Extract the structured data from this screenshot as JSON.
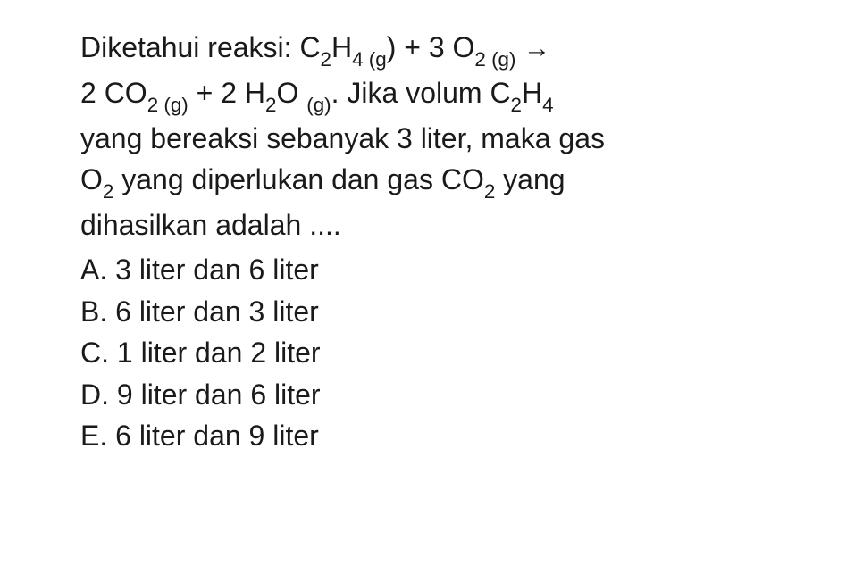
{
  "question": {
    "line1_prefix": "Diketahui reaksi: C",
    "line1_s1": "2",
    "line1_h": "H",
    "line1_s2": "4 (g",
    "line1_paren": ") + 3 O",
    "line1_s3": "2 (g)",
    "line1_arrow": " →",
    "line2_prefix": "2 CO",
    "line2_s1": "2 (g)",
    "line2_mid": " + 2 H",
    "line2_s2": "2",
    "line2_o": "O ",
    "line2_s3": "(g)",
    "line2_end": ".  Jika volum C",
    "line2_s4": "2",
    "line2_h2": "H",
    "line2_s5": "4",
    "line3": "yang bereaksi sebanyak 3 liter, maka gas",
    "line4_prefix": "O",
    "line4_s1": "2",
    "line4_mid": " yang diperlukan dan gas CO",
    "line4_s2": "2",
    "line4_end": " yang",
    "line5": "dihasilkan adalah ...."
  },
  "options": {
    "a": "A. 3 liter dan 6 liter",
    "b": "B. 6 liter dan 3 liter",
    "c": "C. 1 liter dan 2 liter",
    "d": "D. 9 liter dan 6 liter",
    "e": "E. 6 liter dan 9 liter"
  },
  "colors": {
    "text": "#1a1a1a",
    "background": "#ffffff"
  },
  "typography": {
    "font_size_pt": 24,
    "font_family": "Arial",
    "line_height": 1.45
  }
}
